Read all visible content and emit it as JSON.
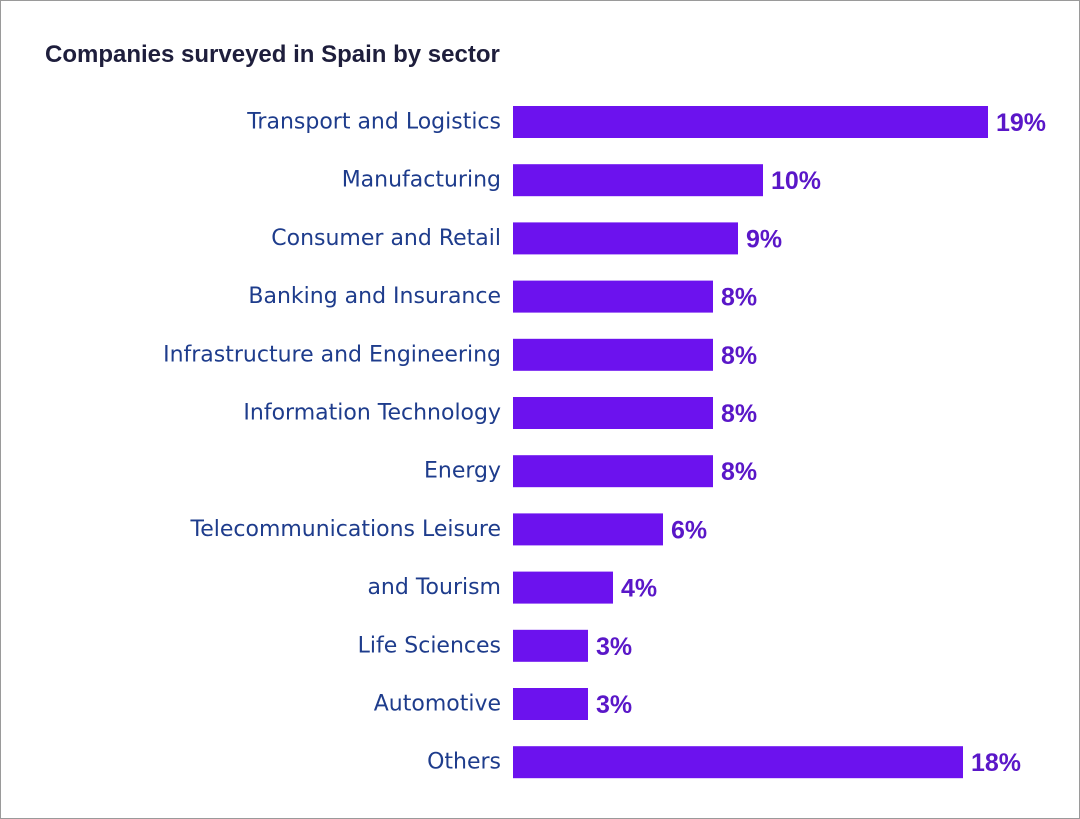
{
  "chart_data": {
    "type": "bar",
    "orientation": "horizontal",
    "title": "Companies surveyed in Spain by sector",
    "categories": [
      "Transport and Logistics",
      "Manufacturing",
      "Consumer and Retail",
      "Banking and Insurance",
      "Infrastructure and Engineering",
      "Information Technology",
      "Energy",
      "Telecommunications Leisure",
      "and Tourism",
      "Life Sciences",
      "Automotive",
      "Others"
    ],
    "values": [
      19,
      10,
      9,
      8,
      8,
      8,
      8,
      6,
      4,
      3,
      3,
      18
    ],
    "value_labels": [
      "19%",
      "10%",
      "9%",
      "8%",
      "8%",
      "8%",
      "8%",
      "6%",
      "4%",
      "3%",
      "3%",
      "18%"
    ],
    "xlim": [
      0,
      19
    ],
    "grid": false,
    "legend": "none",
    "colors": {
      "bar": "#6c12ee",
      "value_label": "#5a17c8",
      "category_label": "#1e3c8c",
      "title": "#1e1e3c"
    }
  }
}
